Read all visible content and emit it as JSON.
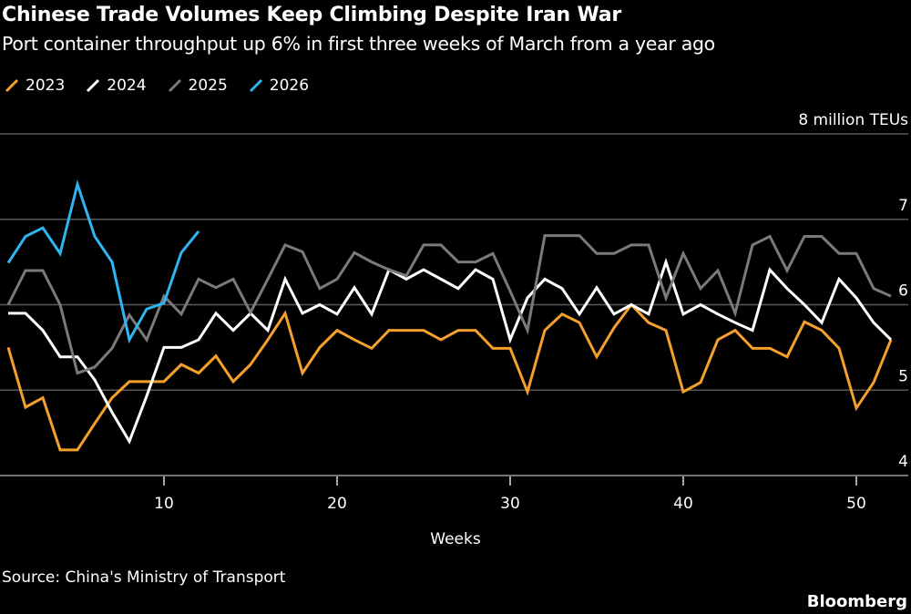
{
  "title": "Chinese Trade Volumes Keep Climbing Despite Iran War",
  "subtitle": "Port container throughput up 6% in first three weeks of March from a year ago",
  "source": "Source: China's Ministry of Transport",
  "brand": "Bloomberg",
  "chart_data": {
    "type": "line",
    "xlabel": "Weeks",
    "ylabel": "",
    "y_unit_label": "8 million TEUs",
    "xlim": [
      1,
      52
    ],
    "ylim": [
      4,
      8
    ],
    "x_ticks": [
      "10",
      "20",
      "30",
      "40",
      "50"
    ],
    "x_tick_values": [
      10,
      20,
      30,
      40,
      50
    ],
    "y_ticks": [
      "4",
      "5",
      "6",
      "7"
    ],
    "y_tick_values": [
      4,
      5,
      6,
      7
    ],
    "grid": true,
    "legend_position": "top-left",
    "series": [
      {
        "name": "2023",
        "color": "#f5a02c",
        "values": [
          5.5,
          4.8,
          4.91,
          4.3,
          4.3,
          4.61,
          4.91,
          5.1,
          5.1,
          5.1,
          5.3,
          5.2,
          5.4,
          5.1,
          5.3,
          5.59,
          5.9,
          5.2,
          5.5,
          5.7,
          5.59,
          5.49,
          5.7,
          5.7,
          5.7,
          5.59,
          5.7,
          5.7,
          5.49,
          5.49,
          4.98,
          5.7,
          5.89,
          5.79,
          5.39,
          5.73,
          6.0,
          5.79,
          5.7,
          4.98,
          5.09,
          5.59,
          5.7,
          5.49,
          5.49,
          5.39,
          5.8,
          5.7,
          5.49,
          4.79,
          5.09,
          5.59
        ]
      },
      {
        "name": "2024",
        "color": "#ffffff",
        "values": [
          5.9,
          5.9,
          5.7,
          5.39,
          5.39,
          5.12,
          4.74,
          4.4,
          4.93,
          5.5,
          5.5,
          5.59,
          5.9,
          5.7,
          5.9,
          5.7,
          6.3,
          5.9,
          6.0,
          5.89,
          6.2,
          5.89,
          6.41,
          6.3,
          6.41,
          6.3,
          6.19,
          6.41,
          6.3,
          5.59,
          6.08,
          6.3,
          6.19,
          5.89,
          6.2,
          5.89,
          6.0,
          5.89,
          6.5,
          5.89,
          6.0,
          5.89,
          5.79,
          5.7,
          6.41,
          6.19,
          6.0,
          5.79,
          6.3,
          6.08,
          5.79,
          5.59
        ]
      },
      {
        "name": "2025",
        "color": "#7a7a7a",
        "values": [
          6.0,
          6.4,
          6.4,
          6.0,
          5.2,
          5.27,
          5.49,
          5.88,
          5.59,
          6.1,
          5.89,
          6.3,
          6.2,
          6.3,
          5.91,
          6.3,
          6.7,
          6.62,
          6.19,
          6.3,
          6.61,
          6.5,
          6.41,
          6.34,
          6.7,
          6.7,
          6.5,
          6.5,
          6.6,
          6.16,
          5.7,
          6.81,
          6.81,
          6.81,
          6.6,
          6.6,
          6.7,
          6.7,
          6.08,
          6.6,
          6.19,
          6.4,
          5.9,
          6.7,
          6.8,
          6.4,
          6.8,
          6.8,
          6.6,
          6.6,
          6.19,
          6.1
        ]
      },
      {
        "name": "2026",
        "color": "#2fb5ef",
        "values": [
          6.49,
          6.8,
          6.9,
          6.6,
          7.41,
          6.8,
          6.5,
          5.59,
          5.95,
          6.02,
          6.61,
          6.86
        ]
      }
    ]
  }
}
